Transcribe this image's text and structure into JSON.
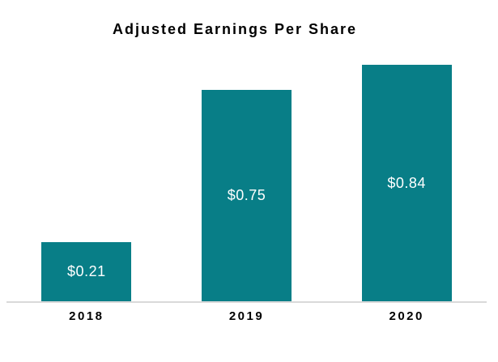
{
  "chart_data": {
    "type": "bar",
    "title": "Adjusted Earnings Per Share",
    "categories": [
      "2018",
      "2019",
      "2020"
    ],
    "values": [
      0.21,
      0.75,
      0.84
    ],
    "value_labels": [
      "$0.21",
      "$0.75",
      "$0.84"
    ],
    "xlabel": "",
    "ylabel": "",
    "ylim": [
      0,
      0.85
    ],
    "grid": false,
    "legend": "none",
    "value_label_position": "center-inside",
    "colors": {
      "bar": "#087E87",
      "value_label": "#FFFFFF",
      "axis_line": "#D9D9D9",
      "title_text": "#000000",
      "category_text": "#000000",
      "background": "#FFFFFF"
    }
  }
}
